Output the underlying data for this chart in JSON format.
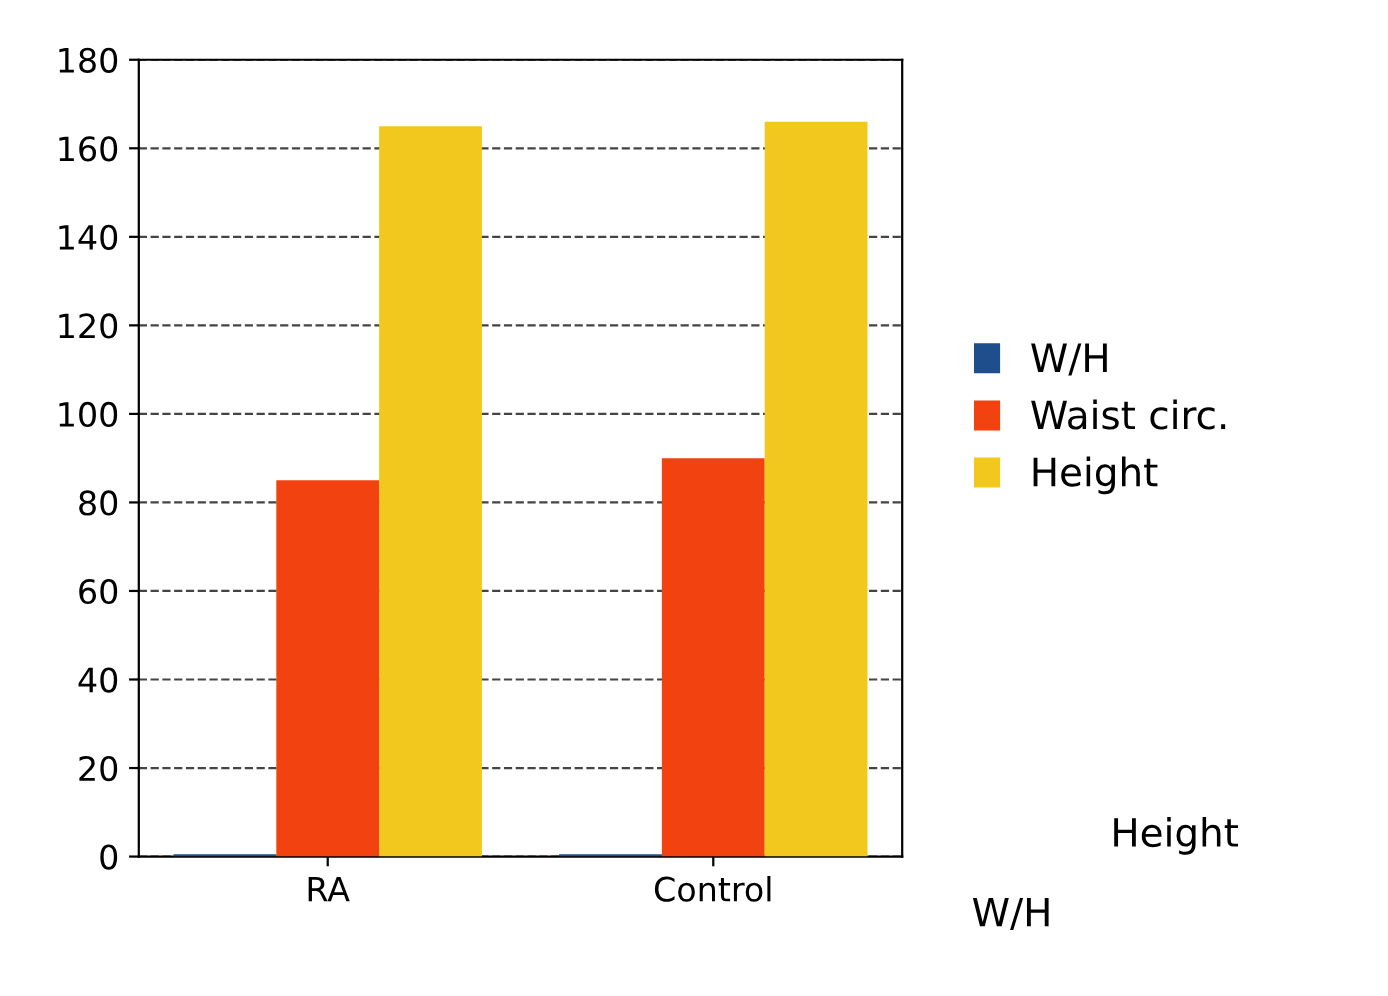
{
  "chart_data": {
    "type": "bar",
    "categories": [
      "RA",
      "Control"
    ],
    "series": [
      {
        "name": "W/H",
        "color": "#1f4e8c",
        "values": [
          0.5,
          0.5
        ]
      },
      {
        "name": "Waist circ.",
        "color": "#f2420f",
        "values": [
          85,
          90
        ]
      },
      {
        "name": "Height",
        "color": "#f2c81e",
        "values": [
          165,
          166
        ]
      }
    ],
    "ylim": [
      0,
      180
    ],
    "yticks": [
      0,
      20,
      40,
      60,
      80,
      100,
      120,
      140,
      160,
      180
    ],
    "grid": "y",
    "legend": "right",
    "annotations": [
      "W/H",
      "Height"
    ]
  }
}
